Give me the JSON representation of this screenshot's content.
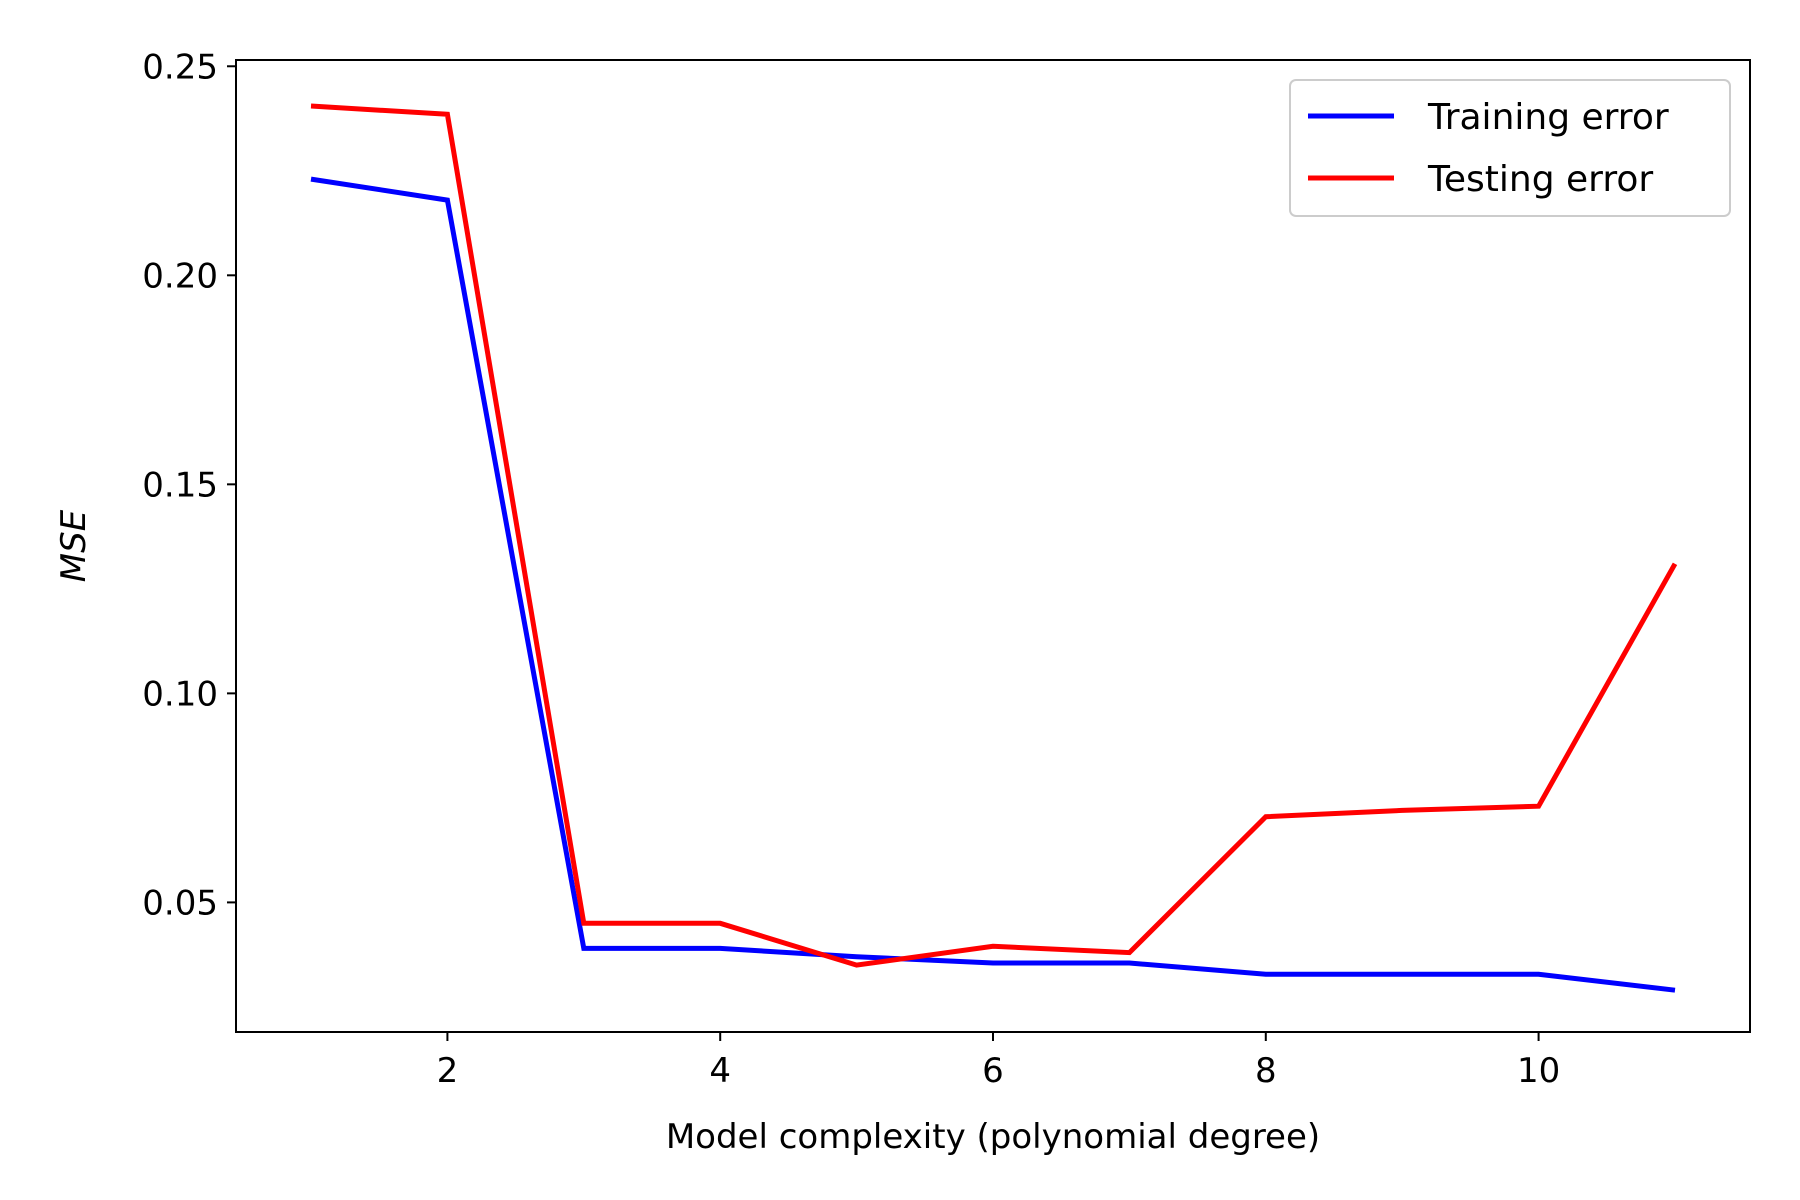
{
  "chart_data": {
    "type": "line",
    "title": "",
    "xlabel": "Model complexity (polynomial degree)",
    "ylabel": "MSE",
    "xlim": [
      0.45,
      11.55
    ],
    "ylim": [
      0.019,
      0.2515
    ],
    "xticks": [
      2,
      4,
      6,
      8,
      10
    ],
    "xtick_labels": [
      "2",
      "4",
      "6",
      "8",
      "10"
    ],
    "yticks": [
      0.05,
      0.1,
      0.15,
      0.2,
      0.25
    ],
    "ytick_labels": [
      "0.05",
      "0.10",
      "0.15",
      "0.20",
      "0.25"
    ],
    "grid": false,
    "legend_position": "top-right",
    "x": [
      1,
      2,
      3,
      4,
      5,
      6,
      7,
      8,
      9,
      10,
      11
    ],
    "series": [
      {
        "name": "Training error",
        "color": "#0000ff",
        "values": [
          0.223,
          0.218,
          0.039,
          0.039,
          0.037,
          0.0355,
          0.0355,
          0.0328,
          0.0328,
          0.0328,
          0.029
        ]
      },
      {
        "name": "Testing error",
        "color": "#ff0000",
        "values": [
          0.2405,
          0.2385,
          0.045,
          0.045,
          0.035,
          0.0395,
          0.038,
          0.0705,
          0.072,
          0.073,
          0.131
        ]
      }
    ]
  }
}
